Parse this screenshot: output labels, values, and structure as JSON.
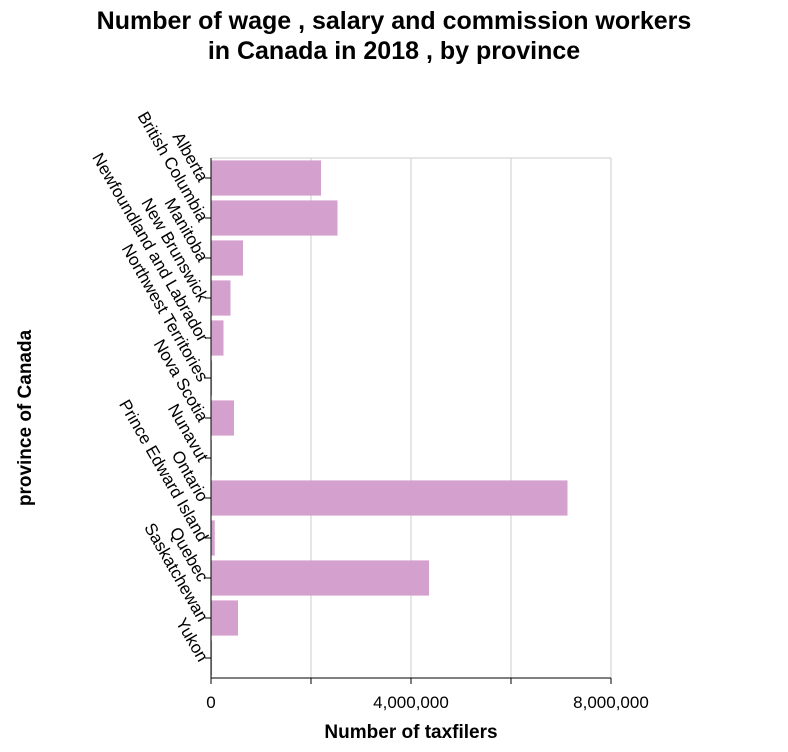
{
  "chart_data": {
    "type": "bar",
    "orientation": "horizontal",
    "title": "Number of wage , salary and commission workers\nin Canada in 2018 , by province",
    "xlabel": "Number of taxfilers",
    "ylabel": "province of Canada",
    "categories": [
      "Alberta",
      "British Columbia",
      "Manitoba",
      "New Brunswick",
      "Newfoundland and Labrador",
      "Northwest Territories",
      "Nova Scotia",
      "Nunavut",
      "Ontario",
      "Prince Edward Island",
      "Quebec",
      "Saskatchewan",
      "Yukon"
    ],
    "values": [
      2200000,
      2530000,
      640000,
      390000,
      250000,
      22000,
      460000,
      15000,
      7130000,
      75000,
      4360000,
      540000,
      21000
    ],
    "xlim": [
      0,
      8000000
    ],
    "xticks": [
      0,
      2000000,
      4000000,
      6000000,
      8000000
    ],
    "xtick_labels": [
      "0",
      "",
      "4,000,000",
      "",
      "8,000,000"
    ],
    "grid": true,
    "legend": "none",
    "bar_color": "#d4a0cd",
    "grid_color": "#cccccc"
  }
}
